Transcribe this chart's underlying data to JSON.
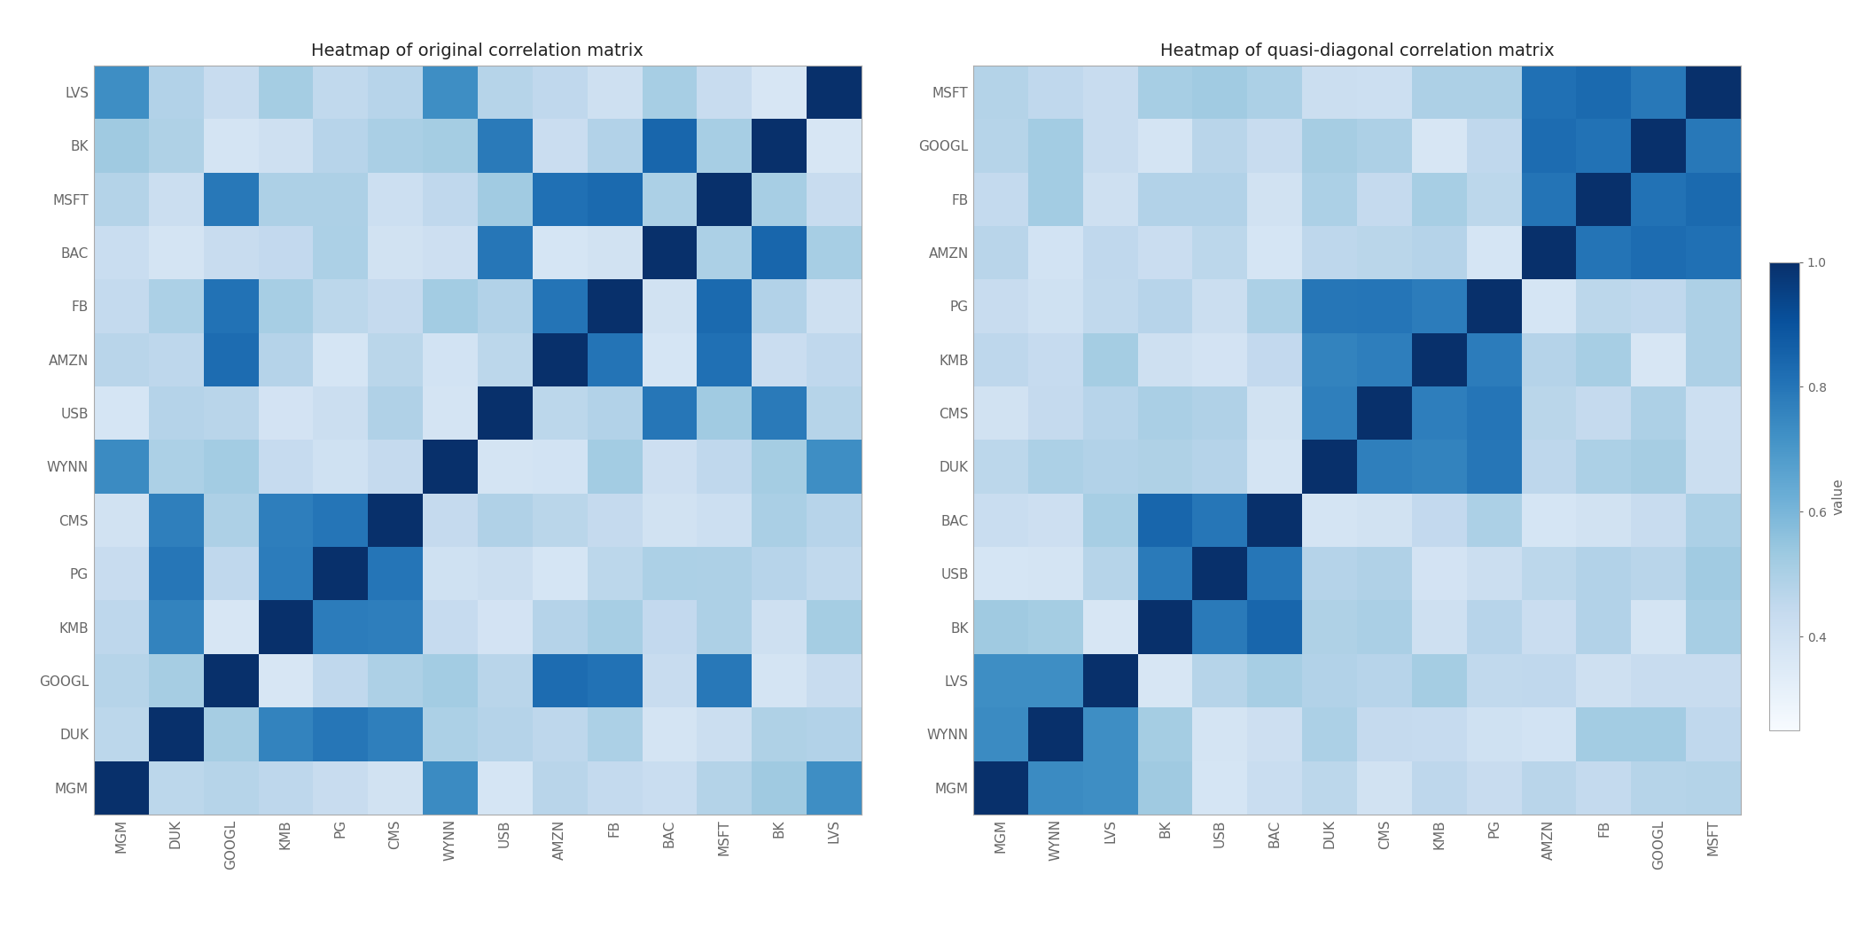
{
  "title1": "Heatmap of original correlation matrix",
  "title2": "Heatmap of quasi-diagonal correlation matrix",
  "colorbar_label": "value",
  "colorbar_ticks": [
    0.4,
    0.6,
    0.8,
    1.0
  ],
  "vmin": 0.25,
  "vmax": 1.0,
  "stocks_original_y": [
    "LVS",
    "BK",
    "MSFT",
    "BAC",
    "FB",
    "AMZN",
    "USB",
    "WYNN",
    "CMS",
    "PG",
    "KMB",
    "GOOGL",
    "DUK",
    "MGM"
  ],
  "stocks_original_x": [
    "MGM",
    "DUK",
    "GOOGL",
    "KMB",
    "PG",
    "CMS",
    "WYNN",
    "USB",
    "AMZN",
    "FB",
    "BAC",
    "MSFT",
    "BK",
    "LVS"
  ],
  "stocks_quasi_y": [
    "MSFT",
    "GOOGL",
    "FB",
    "AMZN",
    "PG",
    "KMB",
    "CMS",
    "DUK",
    "BAC",
    "USB",
    "BK",
    "LVS",
    "WYNN",
    "MGM"
  ],
  "stocks_quasi_x": [
    "MGM",
    "WYNN",
    "LVS",
    "BK",
    "USB",
    "BAC",
    "DUK",
    "CMS",
    "KMB",
    "PG",
    "AMZN",
    "FB",
    "GOOGL",
    "MSFT"
  ],
  "background_color": "#ffffff",
  "cmap": "Blues",
  "figsize": [
    21.12,
    10.56
  ],
  "dpi": 100,
  "title_fontsize": 14,
  "tick_fontsize": 11,
  "colorbar_fontsize": 11
}
